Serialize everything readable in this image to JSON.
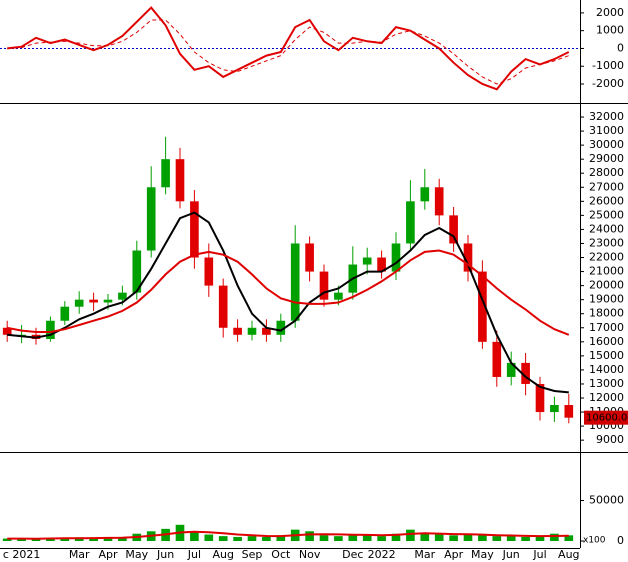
{
  "chart_data": [
    {
      "type": "line",
      "ylim": [
        -2900,
        2500
      ],
      "yticks": [
        -2000,
        -1000,
        0,
        1000,
        2000
      ],
      "series": [
        {
          "color": "#e00000",
          "style": "solid",
          "values": [
            0,
            100,
            600,
            300,
            500,
            200,
            -100,
            200,
            700,
            1500,
            2300,
            1300,
            -300,
            -1200,
            -1000,
            -1600,
            -1200,
            -800,
            -400,
            -200,
            1200,
            1600,
            400,
            -100,
            600,
            400,
            300,
            1200,
            1000,
            500,
            0,
            -800,
            -1500,
            -2000,
            -2300,
            -1300,
            -600,
            -900,
            -600,
            -200
          ]
        },
        {
          "color": "#e00000",
          "style": "dashed",
          "values": [
            0,
            50,
            300,
            350,
            400,
            300,
            150,
            150,
            400,
            900,
            1600,
            1600,
            800,
            -200,
            -800,
            -1200,
            -1300,
            -1000,
            -700,
            -400,
            500,
            1200,
            900,
            300,
            300,
            400,
            350,
            800,
            1000,
            700,
            300,
            -300,
            -1000,
            -1600,
            -2000,
            -1700,
            -1100,
            -900,
            -700,
            -400
          ]
        }
      ]
    },
    {
      "type": "candlestick",
      "ylim": [
        8300,
        32500
      ],
      "yticks": [
        9000,
        10000,
        11000,
        12000,
        13000,
        14000,
        15000,
        16000,
        17000,
        18000,
        19000,
        20000,
        21000,
        22000,
        23000,
        24000,
        25000,
        26000,
        27000,
        28000,
        29000,
        30000,
        31000,
        32000
      ],
      "up_color": "#00a000",
      "down_color": "#e00000",
      "open": [
        17000,
        16500,
        16500,
        16200,
        17500,
        18500,
        19000,
        18800,
        19000,
        19500,
        22500,
        27000,
        29000,
        26000,
        22000,
        20000,
        17000,
        16500,
        17000,
        16500,
        17500,
        23000,
        21000,
        19000,
        19500,
        21500,
        22000,
        21000,
        23000,
        26000,
        27000,
        25000,
        23000,
        21000,
        16000,
        13500,
        14500,
        13000,
        11000,
        11500
      ],
      "high": [
        17500,
        17200,
        17000,
        17800,
        18900,
        19600,
        19500,
        19400,
        20000,
        23200,
        28500,
        30600,
        29800,
        26800,
        23000,
        20500,
        17600,
        17500,
        17600,
        18000,
        24300,
        23500,
        21500,
        20000,
        22800,
        22700,
        22500,
        23800,
        27500,
        28300,
        27600,
        25600,
        23600,
        21800,
        16800,
        15300,
        15200,
        13500,
        12100,
        12300
      ],
      "low": [
        16000,
        15900,
        15800,
        16000,
        17200,
        18000,
        18200,
        18300,
        18600,
        19000,
        22000,
        26500,
        25500,
        21200,
        19200,
        16300,
        16000,
        16100,
        16000,
        16000,
        17000,
        20300,
        18500,
        18600,
        19000,
        20800,
        20500,
        20400,
        22500,
        25400,
        24300,
        22400,
        20300,
        15500,
        12800,
        12900,
        12200,
        10400,
        10300,
        10200
      ],
      "close": [
        16500,
        16500,
        16200,
        17500,
        18500,
        19000,
        18800,
        19000,
        19500,
        22500,
        27000,
        29000,
        26000,
        22000,
        20000,
        17000,
        16500,
        17000,
        16500,
        17500,
        23000,
        21000,
        19000,
        19500,
        21500,
        22000,
        21000,
        23000,
        26000,
        27000,
        25000,
        23000,
        21000,
        16000,
        13500,
        14500,
        13000,
        11000,
        11500,
        10600
      ],
      "series": [
        {
          "color": "#000000",
          "values": [
            16500,
            16400,
            16300,
            16500,
            17000,
            17600,
            18000,
            18500,
            18800,
            19600,
            21200,
            23000,
            24800,
            25200,
            24500,
            22500,
            20000,
            18000,
            17000,
            16800,
            17500,
            18800,
            19500,
            19800,
            20500,
            21000,
            21000,
            21600,
            22500,
            23600,
            24100,
            23500,
            21500,
            19000,
            16500,
            14500,
            13500,
            12800,
            12500,
            12400
          ]
        },
        {
          "color": "#e00000",
          "values": [
            17000,
            16800,
            16700,
            16700,
            16900,
            17200,
            17500,
            17800,
            18200,
            18800,
            19700,
            20800,
            21700,
            22200,
            22400,
            22200,
            21700,
            20800,
            19800,
            19100,
            18800,
            18700,
            18700,
            18800,
            19200,
            19700,
            20300,
            21000,
            21800,
            22400,
            22500,
            22200,
            21500,
            20700,
            19800,
            19000,
            18300,
            17500,
            16900,
            16500
          ]
        }
      ],
      "last_price": {
        "value": 10600,
        "label": "10600.00"
      }
    },
    {
      "type": "bar",
      "ylim": [
        0,
        105000
      ],
      "yticks": [
        0,
        50000
      ],
      "unit_label": "x100",
      "color": "#00a000",
      "categories": [
        null,
        "c 2021",
        null,
        null,
        null,
        "Mar",
        null,
        "Apr",
        null,
        "May",
        null,
        "Jun",
        null,
        "Jul",
        null,
        "Aug",
        null,
        "Sep",
        null,
        "Oct",
        null,
        "Nov",
        null,
        null,
        "Dec",
        null,
        "2022",
        null,
        null,
        "Mar",
        null,
        "Apr",
        null,
        "May",
        null,
        "Jun",
        null,
        "Jul",
        null,
        "Aug"
      ],
      "values": [
        3000,
        2500,
        3000,
        4000,
        3000,
        4500,
        3500,
        4000,
        5000,
        9000,
        12000,
        15000,
        20000,
        11000,
        8000,
        6000,
        5000,
        6000,
        5000,
        7000,
        14000,
        12000,
        7000,
        6000,
        8000,
        7000,
        6000,
        9000,
        14000,
        10000,
        8000,
        7000,
        9000,
        7000,
        6000,
        6000,
        5000,
        5000,
        9000,
        7000
      ],
      "series": [
        {
          "color": "#e00000",
          "values": [
            3000,
            3000,
            2900,
            3100,
            3300,
            3500,
            3600,
            3800,
            4100,
            5000,
            6500,
            8200,
            10500,
            11500,
            10800,
            9500,
            8000,
            7000,
            6200,
            6000,
            7200,
            8200,
            8400,
            8100,
            7800,
            7500,
            7200,
            7500,
            8800,
            9600,
            9200,
            8500,
            8300,
            7900,
            7200,
            6800,
            6300,
            6000,
            6200,
            6400
          ]
        }
      ]
    }
  ]
}
